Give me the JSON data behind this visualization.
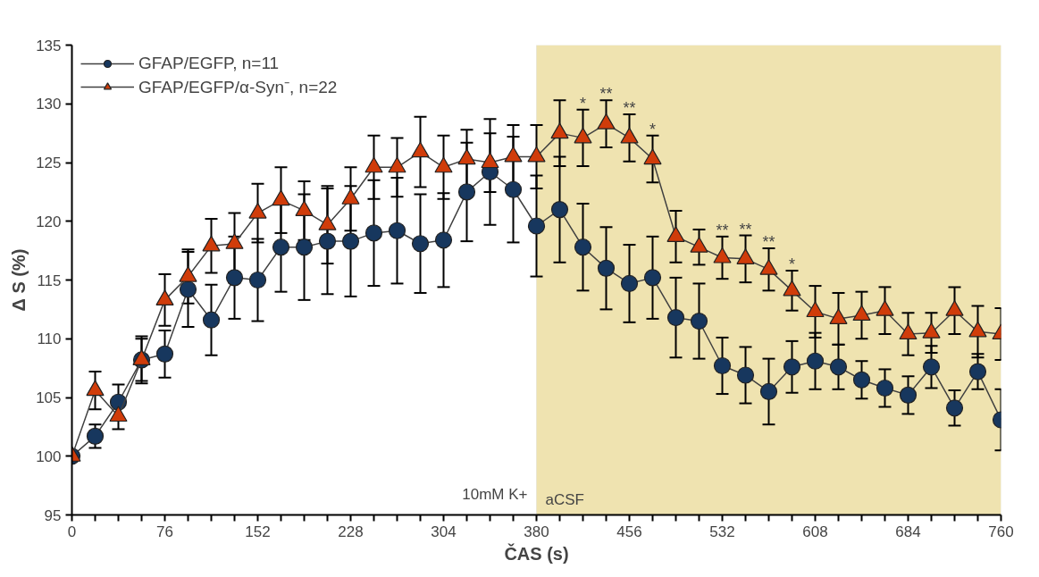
{
  "chart_data": {
    "type": "line",
    "xlabel": "ČAS (s)",
    "ylabel": "Δ S (%)",
    "x": [
      0,
      19,
      38,
      57,
      76,
      95,
      114,
      133,
      152,
      171,
      190,
      209,
      228,
      247,
      266,
      285,
      304,
      323,
      342,
      361,
      380,
      399,
      418,
      437,
      456,
      475,
      494,
      513,
      532,
      551,
      570,
      589,
      608,
      627,
      646,
      665,
      684,
      703,
      722,
      741,
      760
    ],
    "series": [
      {
        "name": "GFAP/EGFP, n=11",
        "color": "#17375e",
        "marker": "circle",
        "values": [
          100,
          101.7,
          104.6,
          108.2,
          108.7,
          114.2,
          111.6,
          115.2,
          115.0,
          117.8,
          117.8,
          118.3,
          118.3,
          119.0,
          119.2,
          118.1,
          118.4,
          122.5,
          124.2,
          122.7,
          119.6,
          121.0,
          117.8,
          116.0,
          114.7,
          115.2,
          111.8,
          111.5,
          107.7,
          106.9,
          105.5,
          107.6,
          108.1,
          107.6,
          106.5,
          105.8,
          105.2,
          107.6,
          104.1,
          107.2,
          103.1
        ],
        "errors": [
          0.3,
          1,
          1.5,
          2,
          2,
          3.2,
          3,
          3.5,
          3.5,
          3.8,
          4.5,
          4.5,
          4.7,
          4.5,
          4.5,
          4.2,
          4,
          4.2,
          4.5,
          4.5,
          4.3,
          4.5,
          3.7,
          3.5,
          3.3,
          3.5,
          3.4,
          3.2,
          2.4,
          2.4,
          2.8,
          2.2,
          2.4,
          1.9,
          1.6,
          1.6,
          1.6,
          1.8,
          1.5,
          1.5,
          2.6
        ]
      },
      {
        "name": "GFAP/EGFP/α-Syn⁻, n=22",
        "color": "#d03c0a",
        "marker": "triangle",
        "values": [
          100,
          105.6,
          103.4,
          108.2,
          113.3,
          115.3,
          117.9,
          118.1,
          120.7,
          121.8,
          120.9,
          119.7,
          121.9,
          124.6,
          124.6,
          125.9,
          124.6,
          125.3,
          125.0,
          125.5,
          125.5,
          127.5,
          127.1,
          128.3,
          127.1,
          125.3,
          118.7,
          117.8,
          116.9,
          116.8,
          115.9,
          114.1,
          112.3,
          111.7,
          112.0,
          112.4,
          110.4,
          110.5,
          112.4,
          110.6,
          110.4
        ],
        "errors": [
          0.3,
          1.6,
          1.1,
          1.8,
          2.2,
          2.3,
          2.3,
          2.6,
          2.5,
          2.8,
          2.5,
          3.3,
          2.7,
          2.7,
          2.5,
          3,
          2.7,
          2.5,
          2.5,
          2.7,
          2.7,
          2.8,
          2.4,
          2,
          2,
          2,
          2.2,
          1.5,
          1.8,
          2,
          1.8,
          1.7,
          2.2,
          2.2,
          2,
          2,
          1.8,
          1.7,
          2,
          2.2,
          2.2
        ]
      }
    ],
    "xlim": [
      0,
      760
    ],
    "ylim": [
      95,
      135
    ],
    "xticks": [
      0,
      {
        "value": 19,
        "label": null
      },
      {
        "value": 38,
        "label": null
      },
      {
        "value": 57,
        "label": null
      },
      76,
      {
        "value": 95,
        "label": null
      },
      {
        "value": 114,
        "label": null
      },
      {
        "value": 133,
        "label": null
      },
      152,
      {
        "value": 171,
        "label": null
      },
      {
        "value": 190,
        "label": null
      },
      {
        "value": 209,
        "label": null
      },
      228,
      {
        "value": 247,
        "label": null
      },
      {
        "value": 266,
        "label": null
      },
      {
        "value": 285,
        "label": null
      },
      304,
      {
        "value": 323,
        "label": null
      },
      {
        "value": 342,
        "label": null
      },
      {
        "value": 361,
        "label": null
      },
      380,
      {
        "value": 399,
        "label": null
      },
      {
        "value": 418,
        "label": null
      },
      {
        "value": 437,
        "label": null
      },
      456,
      {
        "value": 475,
        "label": null
      },
      {
        "value": 494,
        "label": null
      },
      {
        "value": 513,
        "label": null
      },
      532,
      {
        "value": 551,
        "label": null
      },
      {
        "value": 570,
        "label": null
      },
      {
        "value": 589,
        "label": null
      },
      608,
      {
        "value": 627,
        "label": null
      },
      {
        "value": 646,
        "label": null
      },
      {
        "value": 665,
        "label": null
      },
      684,
      {
        "value": 703,
        "label": null
      },
      {
        "value": 722,
        "label": null
      },
      {
        "value": 741,
        "label": null
      },
      760
    ],
    "yticks": [
      95,
      100,
      105,
      110,
      115,
      120,
      125,
      130,
      135
    ],
    "bands": [
      {
        "axis": "x",
        "from": 380,
        "to": 760,
        "label": "aCSF",
        "color": "#efe3b0"
      }
    ],
    "annotations": [
      {
        "text": "10mM K+",
        "x": 380,
        "y": 96
      },
      {
        "text": "*",
        "x": 418,
        "y": 127.1
      },
      {
        "text": "**",
        "x": 437,
        "y": 128.3
      },
      {
        "text": "**",
        "x": 456,
        "y": 127.1
      },
      {
        "text": "*",
        "x": 475,
        "y": 125.3
      },
      {
        "text": "**",
        "x": 532,
        "y": 116.9
      },
      {
        "text": "**",
        "x": 551,
        "y": 116.8
      },
      {
        "text": "**",
        "x": 570,
        "y": 115.9
      },
      {
        "text": "*",
        "x": 589,
        "y": 114.1
      }
    ],
    "legend": "top left",
    "grid": false,
    "line_style": "solid"
  }
}
